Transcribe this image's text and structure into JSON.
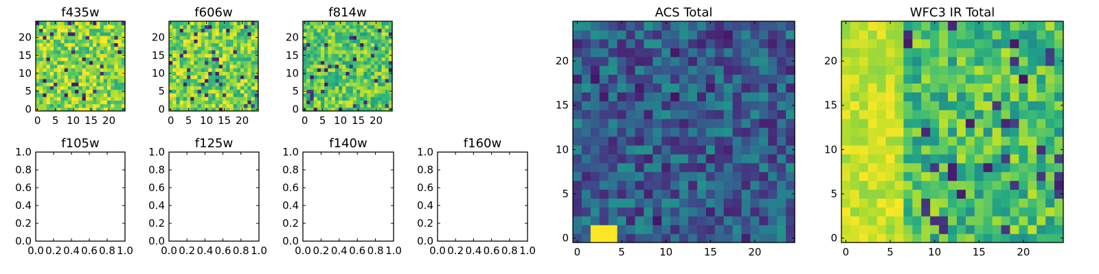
{
  "chart_data": [
    {
      "type": "heatmap",
      "title": "f435w",
      "xticks": [
        "0",
        "5",
        "10",
        "15",
        "20"
      ],
      "yticks": [
        "0",
        "5",
        "10",
        "15",
        "20"
      ],
      "xlim": [
        -0.5,
        24.5
      ],
      "ylim": [
        -0.5,
        24.5
      ],
      "grid_size": [
        25,
        25
      ],
      "colormap": "viridis",
      "dominant_level": 0.82
    },
    {
      "type": "heatmap",
      "title": "f606w",
      "xticks": [
        "0",
        "5",
        "10",
        "15",
        "20"
      ],
      "yticks": [
        "0",
        "5",
        "10",
        "15",
        "20"
      ],
      "xlim": [
        -0.5,
        24.5
      ],
      "ylim": [
        -0.5,
        24.5
      ],
      "grid_size": [
        25,
        25
      ],
      "colormap": "viridis",
      "dominant_level": 0.8
    },
    {
      "type": "heatmap",
      "title": "f814w",
      "xticks": [
        "0",
        "5",
        "10",
        "15",
        "20"
      ],
      "yticks": [
        "0",
        "5",
        "10",
        "15",
        "20"
      ],
      "xlim": [
        -0.5,
        24.5
      ],
      "ylim": [
        -0.5,
        24.5
      ],
      "grid_size": [
        25,
        25
      ],
      "colormap": "viridis",
      "dominant_level": 0.75
    },
    {
      "type": "empty",
      "title": "f105w",
      "xticks": [
        "0.0",
        "0.2",
        "0.4",
        "0.6",
        "0.8",
        "1.0"
      ],
      "yticks": [
        "0.0",
        "0.2",
        "0.4",
        "0.6",
        "0.8",
        "1.0"
      ],
      "xlim": [
        0,
        1
      ],
      "ylim": [
        0,
        1
      ]
    },
    {
      "type": "empty",
      "title": "f125w",
      "xticks": [
        "0.0",
        "0.2",
        "0.4",
        "0.6",
        "0.8",
        "1.0"
      ],
      "yticks": [
        "0.0",
        "0.2",
        "0.4",
        "0.6",
        "0.8",
        "1.0"
      ],
      "xlim": [
        0,
        1
      ],
      "ylim": [
        0,
        1
      ]
    },
    {
      "type": "empty",
      "title": "f140w",
      "xticks": [
        "0.0",
        "0.2",
        "0.4",
        "0.6",
        "0.8",
        "1.0"
      ],
      "yticks": [
        "0.0",
        "0.2",
        "0.4",
        "0.6",
        "0.8",
        "1.0"
      ],
      "xlim": [
        0,
        1
      ],
      "ylim": [
        0,
        1
      ]
    },
    {
      "type": "empty",
      "title": "f160w",
      "xticks": [
        "0.0",
        "0.2",
        "0.4",
        "0.6",
        "0.8",
        "1.0"
      ],
      "yticks": [
        "0.0",
        "0.2",
        "0.4",
        "0.6",
        "0.8",
        "1.0"
      ],
      "xlim": [
        0,
        1
      ],
      "ylim": [
        0,
        1
      ]
    },
    {
      "type": "heatmap",
      "title": "ACS Total",
      "xticks": [
        "0",
        "5",
        "10",
        "15",
        "20"
      ],
      "yticks": [
        "0",
        "5",
        "10",
        "15",
        "20"
      ],
      "xlim": [
        -0.5,
        24.5
      ],
      "ylim": [
        -0.5,
        24.5
      ],
      "grid_size": [
        25,
        25
      ],
      "colormap": "viridis",
      "dominant_level": 0.3,
      "bright_region": {
        "x": [
          2,
          4
        ],
        "y": [
          0,
          1
        ]
      }
    },
    {
      "type": "heatmap",
      "title": "WFC3 IR Total",
      "xticks": [
        "0",
        "5",
        "10",
        "15",
        "20"
      ],
      "yticks": [
        "0",
        "5",
        "10",
        "15",
        "20"
      ],
      "xlim": [
        -0.5,
        24.5
      ],
      "ylim": [
        -0.5,
        24.5
      ],
      "grid_size": [
        25,
        25
      ],
      "colormap": "viridis",
      "dominant_level": 0.7,
      "bright_region": {
        "x": [
          0,
          6
        ],
        "y": [
          0,
          24
        ]
      }
    }
  ]
}
